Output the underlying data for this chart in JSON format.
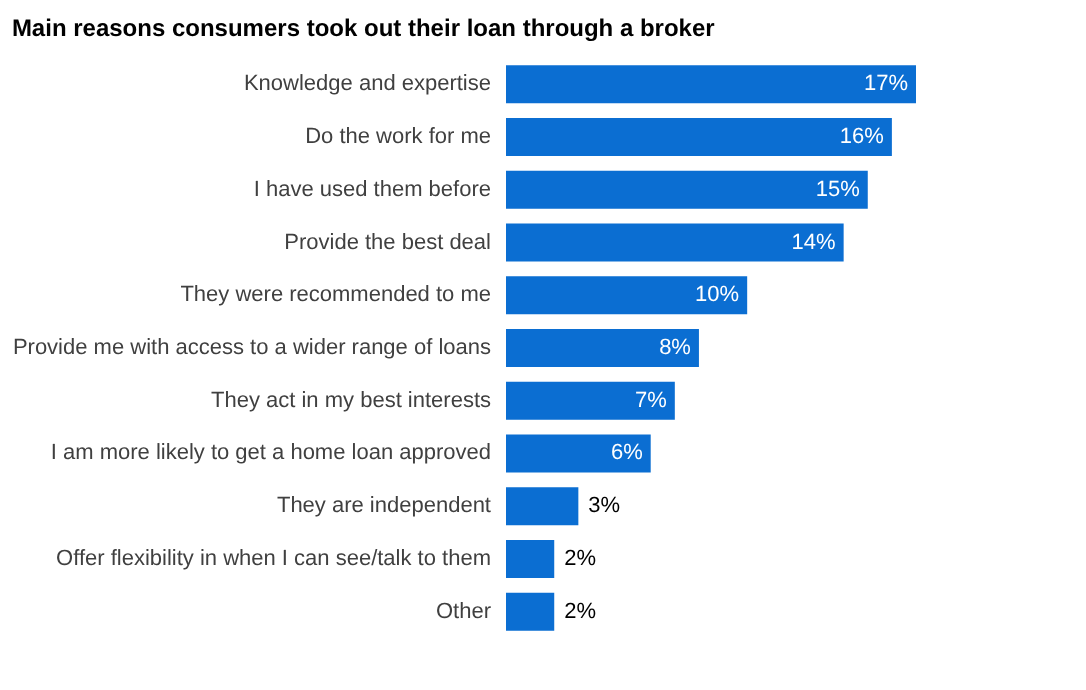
{
  "chart_data": {
    "type": "bar",
    "orientation": "horizontal",
    "title": "Main reasons consumers took out their loan through a broker",
    "categories": [
      "Knowledge and expertise",
      "Do the work for me",
      "I have used them before",
      "Provide the best deal",
      "They were recommended to me",
      "Provide me with access to a wider range of loans",
      "They act in my best interests",
      "I am more likely to get a home loan approved",
      "They are independent",
      "Offer flexibility in when I can see/talk to them",
      "Other"
    ],
    "values": [
      17,
      16,
      15,
      14,
      10,
      8,
      7,
      6,
      3,
      2,
      2
    ],
    "value_labels": [
      "17%",
      "16%",
      "15%",
      "14%",
      "10%",
      "8%",
      "7%",
      "6%",
      "3%",
      "2%",
      "2%"
    ],
    "color": "#0b6ed2",
    "grid": false
  }
}
